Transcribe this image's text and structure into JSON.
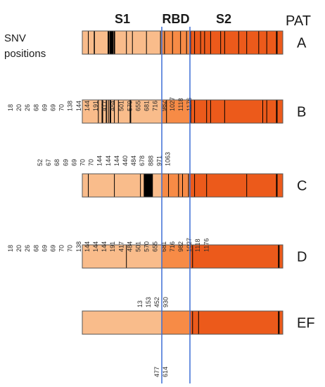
{
  "headers": {
    "s1": "S1",
    "rbd": "RBD",
    "s2": "S2",
    "pat": "PAT"
  },
  "snv_label": [
    "SNV",
    "positions"
  ],
  "colors": {
    "s1": "#F9BC8B",
    "rbd": "#F78B46",
    "s2": "#EC5A1B",
    "border": "#555555",
    "mark": "#000000",
    "divider": "#3D6FD6"
  },
  "patients": [
    {
      "id": "A",
      "marks": [
        [
          0.03,
          1
        ],
        [
          0.06,
          1.5
        ],
        [
          0.13,
          2
        ],
        [
          0.16,
          2
        ],
        [
          0.22,
          1
        ],
        [
          0.25,
          1
        ],
        [
          0.32,
          1
        ],
        [
          0.39,
          1
        ],
        [
          0.41,
          1
        ],
        [
          0.45,
          1
        ],
        [
          0.49,
          1
        ],
        [
          0.52,
          1
        ],
        [
          0.54,
          1
        ],
        [
          0.56,
          1
        ],
        [
          0.59,
          1
        ],
        [
          0.61,
          1
        ],
        [
          0.64,
          1
        ],
        [
          0.69,
          1
        ],
        [
          0.71,
          1
        ],
        [
          0.78,
          1
        ],
        [
          0.82,
          1
        ],
        [
          0.88,
          1
        ],
        [
          0.92,
          1
        ],
        [
          0.97,
          2
        ]
      ],
      "solid": [
        [
          0.135,
          0.155
        ]
      ],
      "positions": [
        "18",
        "20",
        "26",
        "68",
        "69",
        "69",
        "70",
        "138",
        "144",
        "144",
        "191",
        "417",
        "484",
        "501",
        "570",
        "655",
        "681",
        "716",
        "982",
        "1027",
        "1118",
        "1176"
      ]
    },
    {
      "id": "B",
      "marks": [
        [
          0.08,
          1
        ],
        [
          0.1,
          2
        ],
        [
          0.12,
          1.5
        ],
        [
          0.13,
          1
        ],
        [
          0.14,
          2
        ],
        [
          0.16,
          1
        ],
        [
          0.18,
          1
        ],
        [
          0.24,
          2
        ],
        [
          0.42,
          1
        ],
        [
          0.54,
          1.5
        ],
        [
          0.56,
          1
        ],
        [
          0.62,
          1
        ],
        [
          0.64,
          1
        ],
        [
          0.71,
          1
        ],
        [
          0.9,
          1
        ],
        [
          0.92,
          1
        ],
        [
          0.97,
          2
        ]
      ],
      "solid": [],
      "positions": [
        "52",
        "67",
        "68",
        "69",
        "69",
        "70",
        "70",
        "144",
        "144",
        "144",
        "440",
        "484",
        "678",
        "888",
        "971",
        "1063"
      ]
    },
    {
      "id": "C",
      "marks": [
        [
          0.03,
          1
        ],
        [
          0.16,
          1
        ],
        [
          0.29,
          1
        ],
        [
          0.31,
          2
        ],
        [
          0.33,
          1
        ],
        [
          0.35,
          1
        ],
        [
          0.43,
          1
        ],
        [
          0.48,
          1
        ],
        [
          0.5,
          1
        ],
        [
          0.53,
          1
        ],
        [
          0.56,
          1
        ],
        [
          0.62,
          1
        ],
        [
          0.82,
          1
        ],
        [
          0.97,
          2
        ]
      ],
      "solid": [
        [
          0.31,
          0.35
        ]
      ],
      "positions": [
        "18",
        "20",
        "26",
        "68",
        "69",
        "69",
        "70",
        "70",
        "138",
        "144",
        "144",
        "144",
        "191",
        "417",
        "484",
        "501",
        "570",
        "655",
        "681",
        "716",
        "982",
        "1027",
        "1118",
        "1176"
      ]
    },
    {
      "id": "D",
      "marks": [
        [
          0.22,
          1
        ],
        [
          0.55,
          1
        ],
        [
          0.98,
          2
        ]
      ],
      "solid": [],
      "positions": [
        "13",
        "153",
        "452",
        "930"
      ]
    },
    {
      "id": "EF",
      "marks": [
        [
          0.55,
          1
        ],
        [
          0.58,
          1
        ],
        [
          0.98,
          2
        ]
      ],
      "solid": [],
      "positions": [
        "477",
        "614"
      ]
    }
  ]
}
